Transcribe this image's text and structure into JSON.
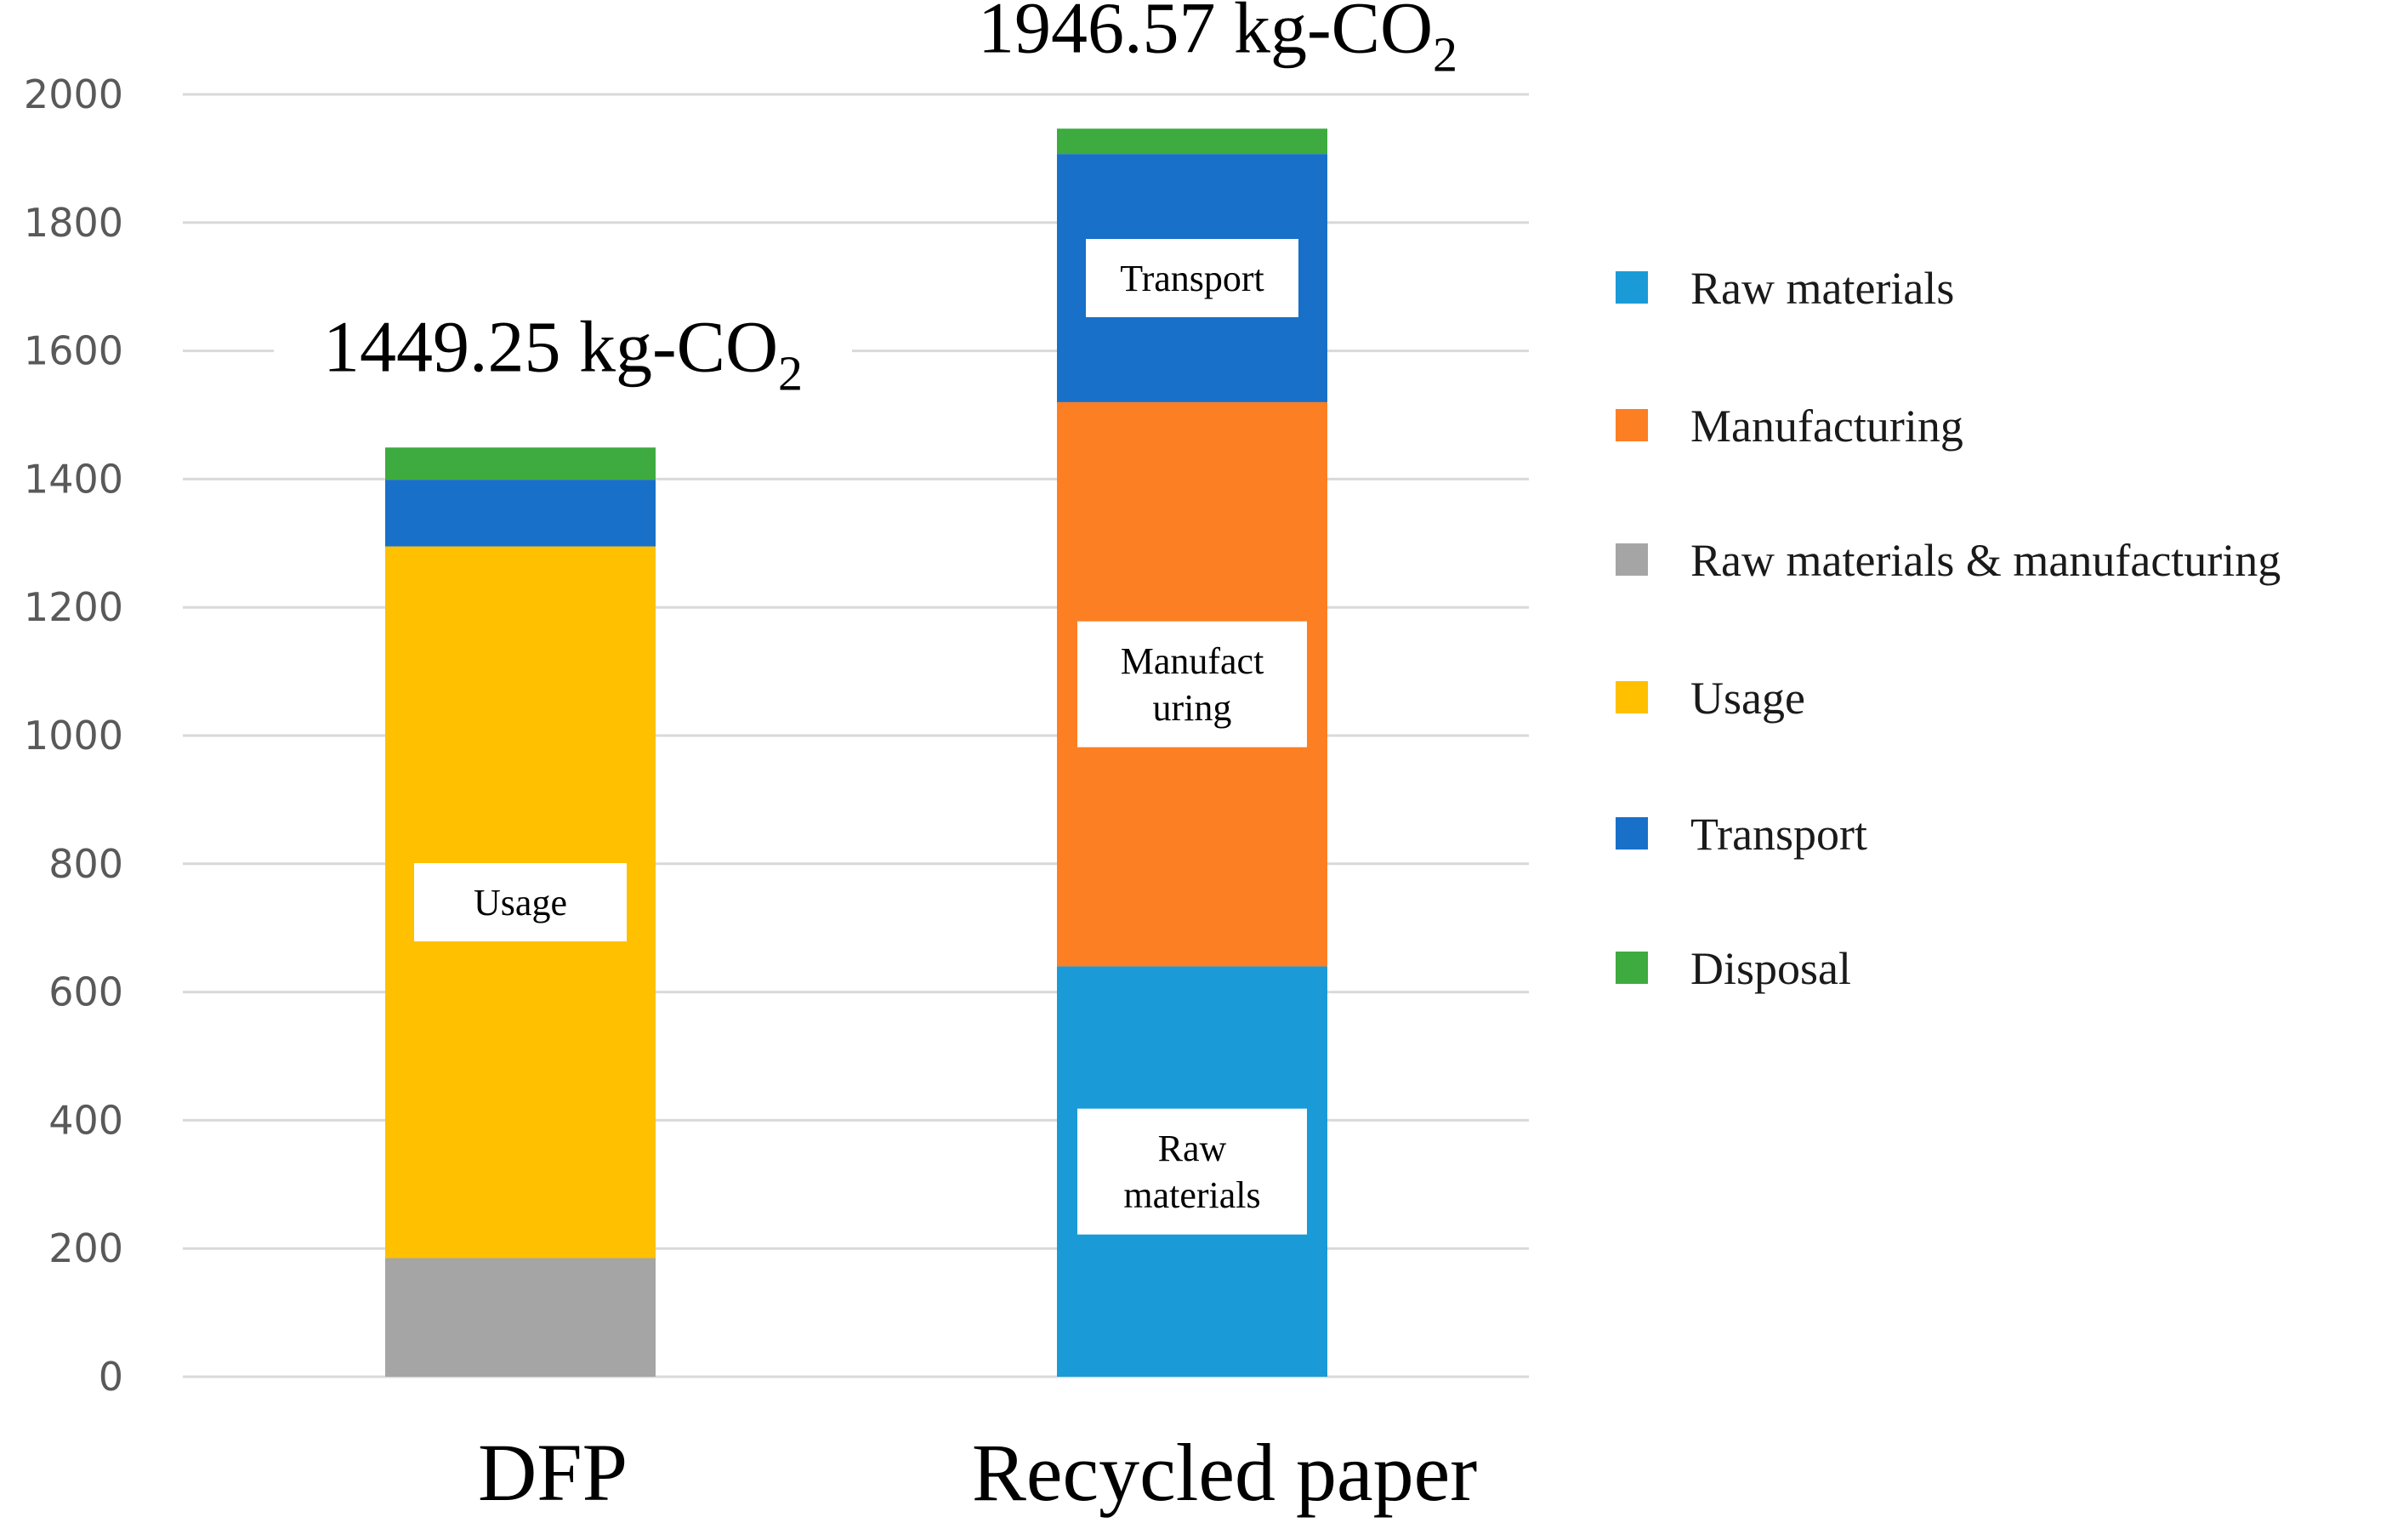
{
  "chart_data": {
    "type": "bar",
    "stacked": true,
    "categories": [
      "DFP",
      "Recycled paper"
    ],
    "ylim": [
      0,
      2000
    ],
    "yticks": [
      0,
      200,
      400,
      600,
      800,
      1000,
      1200,
      1400,
      1600,
      1800,
      2000
    ],
    "grid": true,
    "legend_position": "right",
    "totals": [
      {
        "value": "1449.25",
        "unit": "kg-CO",
        "subscript": "2"
      },
      {
        "value": "1946.57",
        "unit": "kg-CO",
        "subscript": "2"
      }
    ],
    "series": [
      {
        "name": "Raw materials",
        "color": "#1a9bd7",
        "values": [
          0,
          640
        ],
        "labels": [
          null,
          [
            "Raw",
            "materials"
          ]
        ]
      },
      {
        "name": "Manufacturing",
        "color": "#fd7f23",
        "values": [
          0,
          880
        ],
        "labels": [
          null,
          [
            "Manufact",
            "uring"
          ]
        ]
      },
      {
        "name": "Raw materials & manufacturing",
        "color": "#a5a5a5",
        "values": [
          185,
          0
        ],
        "labels": [
          null,
          null
        ]
      },
      {
        "name": "Usage",
        "color": "#ffc000",
        "values": [
          1110,
          0
        ],
        "labels": [
          [
            "Usage"
          ],
          null
        ]
      },
      {
        "name": "Transport",
        "color": "#1870c9",
        "values": [
          104,
          387
        ],
        "labels": [
          null,
          [
            "Transport"
          ]
        ]
      },
      {
        "name": "Disposal",
        "color": "#3dab3f",
        "values": [
          50.25,
          39.57
        ],
        "labels": [
          null,
          null
        ]
      }
    ]
  }
}
